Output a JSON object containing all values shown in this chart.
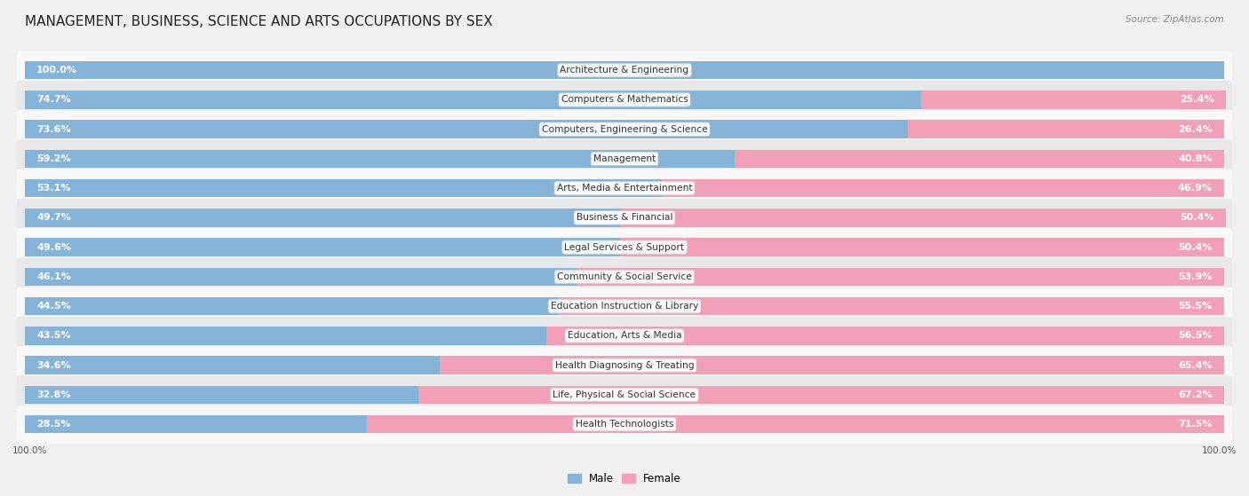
{
  "title": "MANAGEMENT, BUSINESS, SCIENCE AND ARTS OCCUPATIONS BY SEX",
  "source": "Source: ZipAtlas.com",
  "categories": [
    "Architecture & Engineering",
    "Computers & Mathematics",
    "Computers, Engineering & Science",
    "Management",
    "Arts, Media & Entertainment",
    "Business & Financial",
    "Legal Services & Support",
    "Community & Social Service",
    "Education Instruction & Library",
    "Education, Arts & Media",
    "Health Diagnosing & Treating",
    "Life, Physical & Social Science",
    "Health Technologists"
  ],
  "male_pct": [
    100.0,
    74.7,
    73.6,
    59.2,
    53.1,
    49.7,
    49.6,
    46.1,
    44.5,
    43.5,
    34.6,
    32.8,
    28.5
  ],
  "female_pct": [
    0.0,
    25.4,
    26.4,
    40.8,
    46.9,
    50.4,
    50.4,
    53.9,
    55.5,
    56.5,
    65.4,
    67.2,
    71.5
  ],
  "male_color": "#85b4d8",
  "female_color": "#f2a0b8",
  "bar_height": 0.62,
  "background_color": "#f0f0f0",
  "row_bg_even": "#e8e8e8",
  "row_bg_odd": "#f8f8f8",
  "title_fontsize": 11,
  "label_fontsize": 8,
  "source_fontsize": 7.5,
  "legend_fontsize": 8.5,
  "pct_inside_threshold": 10
}
